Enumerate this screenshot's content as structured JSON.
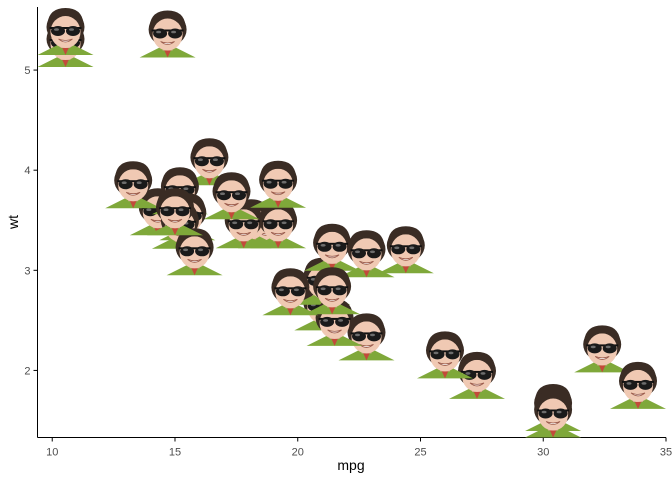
{
  "chart_data": {
    "type": "scatter",
    "title": "",
    "xlabel": "mpg",
    "ylabel": "wt",
    "xlim": [
      9.4,
      35.0
    ],
    "ylim": [
      1.33,
      5.63
    ],
    "x_ticks": [
      10,
      15,
      20,
      25,
      30,
      35
    ],
    "y_ticks": [
      2,
      3,
      4,
      5
    ],
    "grid": false,
    "legend": "none",
    "marker": "face-image",
    "points": [
      {
        "x": 21.0,
        "y": 2.62
      },
      {
        "x": 21.0,
        "y": 2.875
      },
      {
        "x": 22.8,
        "y": 2.32
      },
      {
        "x": 21.4,
        "y": 3.215
      },
      {
        "x": 18.7,
        "y": 3.44
      },
      {
        "x": 18.1,
        "y": 3.46
      },
      {
        "x": 14.3,
        "y": 3.57
      },
      {
        "x": 24.4,
        "y": 3.19
      },
      {
        "x": 22.8,
        "y": 3.15
      },
      {
        "x": 19.2,
        "y": 3.44
      },
      {
        "x": 17.8,
        "y": 3.44
      },
      {
        "x": 16.4,
        "y": 4.07
      },
      {
        "x": 17.3,
        "y": 3.73
      },
      {
        "x": 15.2,
        "y": 3.78
      },
      {
        "x": 10.4,
        "y": 5.25
      },
      {
        "x": 10.4,
        "y": 5.424
      },
      {
        "x": 14.7,
        "y": 5.345
      },
      {
        "x": 32.4,
        "y": 2.2
      },
      {
        "x": 30.4,
        "y": 1.615
      },
      {
        "x": 33.9,
        "y": 1.835
      },
      {
        "x": 21.5,
        "y": 2.465
      },
      {
        "x": 15.5,
        "y": 3.52
      },
      {
        "x": 15.2,
        "y": 3.435
      },
      {
        "x": 13.3,
        "y": 3.84
      },
      {
        "x": 19.2,
        "y": 3.845
      },
      {
        "x": 27.3,
        "y": 1.935
      },
      {
        "x": 26.0,
        "y": 2.14
      },
      {
        "x": 30.4,
        "y": 1.513
      },
      {
        "x": 15.8,
        "y": 3.17
      },
      {
        "x": 19.7,
        "y": 2.77
      },
      {
        "x": 15.0,
        "y": 3.57
      },
      {
        "x": 21.4,
        "y": 2.78
      }
    ]
  }
}
